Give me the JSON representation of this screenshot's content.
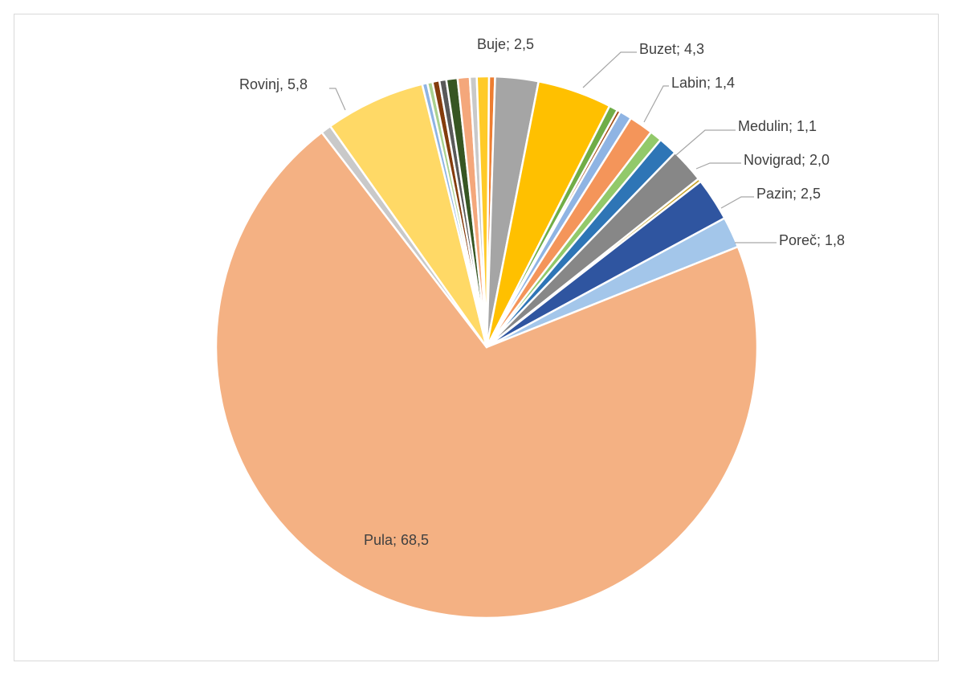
{
  "chart_data": {
    "type": "pie",
    "title": "",
    "label_format": "category; value",
    "slices": [
      {
        "name": "",
        "value": 0.35,
        "color": "#ed7d31"
      },
      {
        "name": "Buje",
        "value": 2.5,
        "color": "#a5a5a5",
        "label": "Buje; 2,5"
      },
      {
        "name": "Buzet",
        "value": 4.3,
        "color": "#ffc000",
        "label": "Buzet; 4,3"
      },
      {
        "name": "",
        "value": 0.5,
        "color": "#70ad47"
      },
      {
        "name": "",
        "value": 0.2,
        "color": "#9e480e"
      },
      {
        "name": "",
        "value": 0.7,
        "color": "#8fb4e3"
      },
      {
        "name": "Labin",
        "value": 1.4,
        "color": "#f4955a",
        "label": "Labin; 1,4"
      },
      {
        "name": "",
        "value": 0.7,
        "color": "#92c96a"
      },
      {
        "name": "Medulin",
        "value": 1.1,
        "color": "#2e75b6",
        "label": "Medulin; 1,1"
      },
      {
        "name": "Novigrad",
        "value": 2.0,
        "color": "#878787",
        "label": "Novigrad; 2,0"
      },
      {
        "name": "",
        "value": 0.2,
        "color": "#c9a227"
      },
      {
        "name": "Pazin",
        "value": 2.5,
        "color": "#2f55a0",
        "label": "Pazin; 2,5"
      },
      {
        "name": "Poreč",
        "value": 1.8,
        "color": "#a3c6ea",
        "label": "Poreč; 1,8"
      },
      {
        "name": "Pula",
        "value": 68.5,
        "color": "#f4b183",
        "label": "Pula; 68,5"
      },
      {
        "name": "",
        "value": 0.6,
        "color": "#c9c9c9"
      },
      {
        "name": "Rovinj",
        "value": 5.8,
        "color": "#ffd966",
        "label": "Rovinj, 5,8"
      },
      {
        "name": "",
        "value": 0.3,
        "color": "#8fb4e3"
      },
      {
        "name": "",
        "value": 0.3,
        "color": "#a9d18e"
      },
      {
        "name": "",
        "value": 0.4,
        "color": "#843c0c"
      },
      {
        "name": "",
        "value": 0.4,
        "color": "#595959"
      },
      {
        "name": "",
        "value": 0.65,
        "color": "#375623"
      },
      {
        "name": "",
        "value": 0.7,
        "color": "#f4a77b"
      },
      {
        "name": "",
        "value": 0.4,
        "color": "#c9c9c9"
      },
      {
        "name": "",
        "value": 0.7,
        "color": "#ffca28"
      }
    ]
  }
}
